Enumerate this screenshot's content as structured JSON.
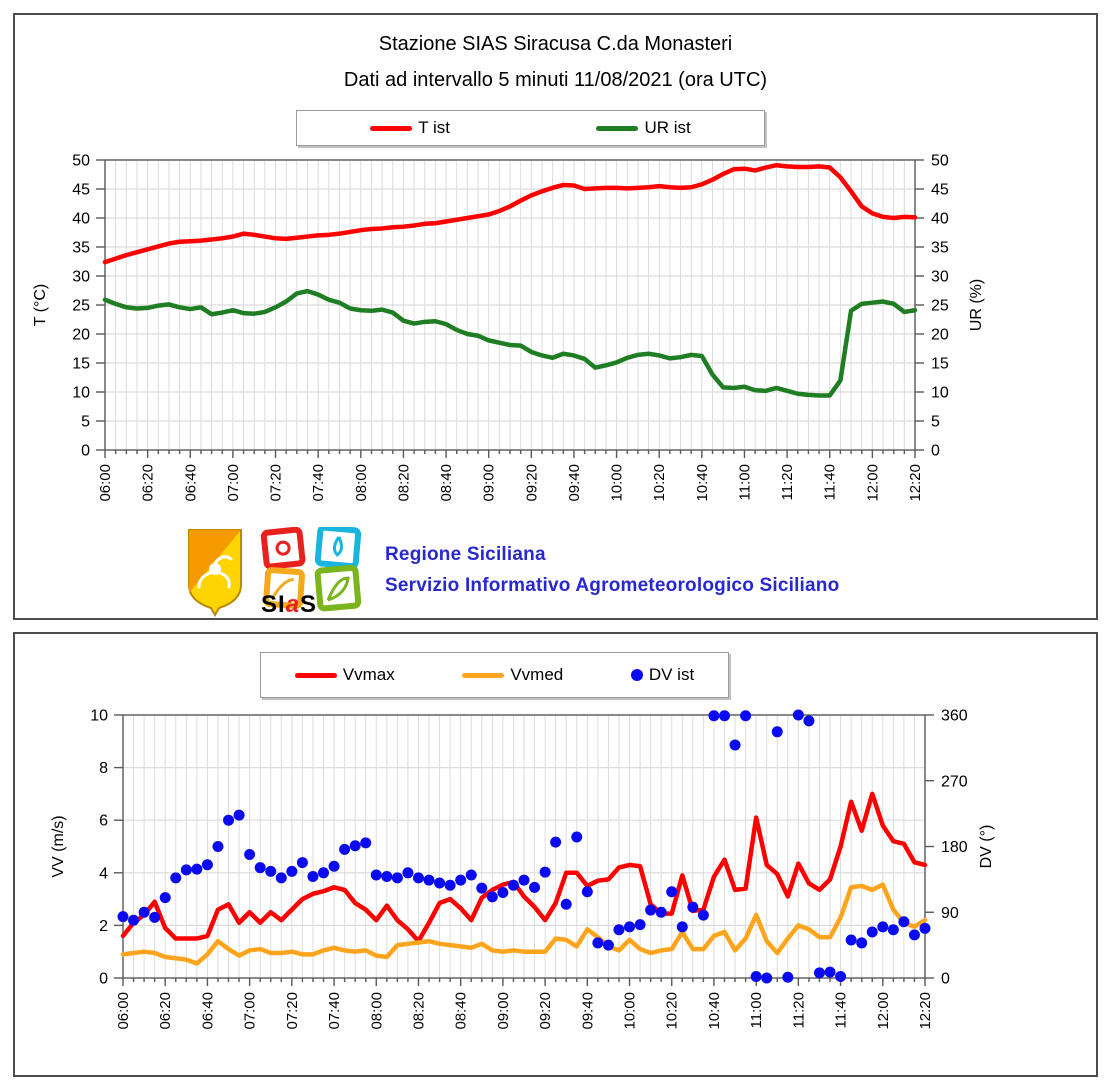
{
  "colors": {
    "t_ist": "#ff0000",
    "ur_ist": "#1f7d23",
    "vvmax": "#ff0000",
    "vvmed": "#ffa41c",
    "dv_ist": "#0a0af0",
    "brand_blue": "#2828d0",
    "sias_red": "#e8211d",
    "grid": "#dcdcdc",
    "axis": "#595959"
  },
  "branding": {
    "line1": "Regione Siciliana",
    "line2": "Servizio Informativo Agrometeorologico Siciliano",
    "sias_s1": "SI",
    "sias_a": "a",
    "sias_s2": "S"
  },
  "chart_data": [
    {
      "type": "line",
      "title": "Stazione SIAS Siracusa C.da Monasteri",
      "subtitle": "Dati ad intervallo 5 minuti 11/08/2021 (ora UTC)",
      "x_start": "06:00",
      "x_step_minutes": 5,
      "x_tick_labels": [
        "06:00",
        "06:20",
        "06:40",
        "07:00",
        "07:20",
        "07:40",
        "08:00",
        "08:20",
        "08:40",
        "09:00",
        "09:20",
        "09:40",
        "10:00",
        "10:20",
        "10:40",
        "11:00",
        "11:20",
        "11:40",
        "12:00",
        "12:20"
      ],
      "ylabel_left": "T (°C)",
      "ylabel_right": "UR (%)",
      "ylim_left": [
        0,
        50
      ],
      "ylim_right": [
        0,
        50
      ],
      "yticks_left": [
        0,
        5,
        10,
        15,
        20,
        25,
        30,
        35,
        40,
        45,
        50
      ],
      "yticks_right": [
        0,
        5,
        10,
        15,
        20,
        25,
        30,
        35,
        40,
        45,
        50
      ],
      "grid": true,
      "legend_position": "top",
      "series": [
        {
          "name": "T ist",
          "color": "#ff0000",
          "axis": "left",
          "style": "line",
          "values": [
            32.4,
            33.0,
            33.6,
            34.1,
            34.6,
            35.1,
            35.6,
            35.9,
            36.0,
            36.1,
            36.3,
            36.5,
            36.8,
            37.3,
            37.1,
            36.8,
            36.5,
            36.4,
            36.6,
            36.8,
            37.0,
            37.1,
            37.3,
            37.6,
            37.9,
            38.1,
            38.2,
            38.4,
            38.5,
            38.7,
            39.0,
            39.1,
            39.4,
            39.7,
            40.0,
            40.3,
            40.6,
            41.2,
            42.0,
            43.0,
            43.9,
            44.6,
            45.2,
            45.7,
            45.6,
            45.0,
            45.1,
            45.2,
            45.2,
            45.1,
            45.2,
            45.3,
            45.5,
            45.3,
            45.2,
            45.3,
            45.8,
            46.6,
            47.6,
            48.4,
            48.5,
            48.2,
            48.7,
            49.1,
            48.9,
            48.8,
            48.8,
            48.9,
            48.7,
            47.0,
            44.6,
            42.0,
            40.8,
            40.2,
            40.0,
            40.2,
            40.1
          ]
        },
        {
          "name": "UR ist",
          "color": "#1f7d23",
          "axis": "right",
          "style": "line",
          "values": [
            25.9,
            25.2,
            24.6,
            24.4,
            24.5,
            24.9,
            25.1,
            24.6,
            24.3,
            24.6,
            23.4,
            23.7,
            24.1,
            23.6,
            23.5,
            23.8,
            24.6,
            25.6,
            27.0,
            27.4,
            26.8,
            25.9,
            25.4,
            24.4,
            24.1,
            24.0,
            24.2,
            23.7,
            22.3,
            21.8,
            22.1,
            22.2,
            21.7,
            20.7,
            20.0,
            19.7,
            18.9,
            18.5,
            18.1,
            18.0,
            16.9,
            16.3,
            15.9,
            16.6,
            16.3,
            15.7,
            14.2,
            14.6,
            15.1,
            15.9,
            16.4,
            16.6,
            16.3,
            15.8,
            16.0,
            16.4,
            16.2,
            13.0,
            10.8,
            10.7,
            10.9,
            10.3,
            10.2,
            10.7,
            10.2,
            9.7,
            9.5,
            9.4,
            9.4,
            12.0,
            24.0,
            25.2,
            25.4,
            25.6,
            25.2,
            23.8,
            24.1
          ]
        }
      ]
    },
    {
      "type": "line+scatter",
      "title": "",
      "x_start": "06:00",
      "x_step_minutes": 5,
      "x_tick_labels": [
        "06:00",
        "06:20",
        "06:40",
        "07:00",
        "07:20",
        "07:40",
        "08:00",
        "08:20",
        "08:40",
        "09:00",
        "09:20",
        "09:40",
        "10:00",
        "10:20",
        "10:40",
        "11:00",
        "11:20",
        "11:40",
        "12:00",
        "12:20"
      ],
      "ylabel_left": "VV (m/s)",
      "ylabel_right": "DV (°)",
      "ylim_left": [
        0,
        10
      ],
      "ylim_right": [
        0,
        360
      ],
      "yticks_left": [
        0,
        2,
        4,
        6,
        8,
        10
      ],
      "yticks_right": [
        0,
        90,
        180,
        270,
        360
      ],
      "grid": true,
      "legend_position": "top",
      "series": [
        {
          "name": "Vvmax",
          "color": "#ff0000",
          "axis": "left",
          "style": "line",
          "values": [
            1.6,
            2.1,
            2.4,
            2.9,
            1.9,
            1.5,
            1.5,
            1.5,
            1.6,
            2.6,
            2.8,
            2.1,
            2.5,
            2.1,
            2.5,
            2.2,
            2.6,
            3.0,
            3.2,
            3.3,
            3.45,
            3.35,
            2.85,
            2.6,
            2.2,
            2.75,
            2.2,
            1.85,
            1.4,
            2.1,
            2.85,
            3.0,
            2.65,
            2.2,
            3.05,
            3.35,
            3.55,
            3.65,
            3.1,
            2.7,
            2.2,
            2.85,
            4.0,
            4.0,
            3.5,
            3.7,
            3.75,
            4.2,
            4.3,
            4.25,
            2.8,
            2.45,
            2.45,
            3.9,
            2.55,
            2.6,
            3.85,
            4.5,
            3.35,
            3.4,
            6.1,
            4.3,
            3.95,
            3.1,
            4.35,
            3.6,
            3.35,
            3.75,
            5.0,
            6.7,
            5.6,
            7.0,
            5.8,
            5.2,
            5.1,
            4.4,
            4.3
          ]
        },
        {
          "name": "Vvmed",
          "color": "#ffa41c",
          "axis": "left",
          "style": "line",
          "values": [
            0.9,
            0.95,
            1.0,
            0.95,
            0.8,
            0.75,
            0.7,
            0.55,
            0.9,
            1.4,
            1.1,
            0.85,
            1.05,
            1.1,
            0.95,
            0.95,
            1.0,
            0.9,
            0.9,
            1.05,
            1.15,
            1.05,
            1.0,
            1.05,
            0.85,
            0.8,
            1.25,
            1.3,
            1.35,
            1.4,
            1.3,
            1.25,
            1.2,
            1.15,
            1.3,
            1.05,
            1.0,
            1.05,
            1.0,
            1.0,
            1.0,
            1.5,
            1.45,
            1.2,
            1.85,
            1.55,
            1.2,
            1.05,
            1.45,
            1.1,
            0.95,
            1.05,
            1.1,
            1.75,
            1.1,
            1.1,
            1.6,
            1.75,
            1.05,
            1.5,
            2.4,
            1.4,
            0.95,
            1.5,
            2.0,
            1.85,
            1.55,
            1.55,
            2.3,
            3.45,
            3.5,
            3.35,
            3.55,
            2.6,
            2.1,
            1.95,
            2.2
          ]
        },
        {
          "name": "DV ist",
          "color": "#0a0af0",
          "axis": "right",
          "style": "scatter",
          "values": [
            84,
            79,
            90,
            83,
            110,
            137,
            148,
            149,
            155,
            180,
            216,
            223,
            169,
            151,
            146,
            137,
            146,
            158,
            139,
            144,
            153,
            176,
            181,
            185,
            141,
            139,
            137,
            144,
            137,
            134,
            130,
            127,
            134,
            141,
            123,
            111,
            117,
            127,
            134,
            124,
            145,
            186,
            101,
            193,
            118,
            48,
            45,
            66,
            70,
            73,
            93,
            90,
            118,
            70,
            97,
            86,
            359,
            359,
            319,
            359,
            2,
            0,
            337,
            1,
            360,
            352,
            7,
            8,
            2,
            52,
            48,
            63,
            70,
            66,
            77,
            59,
            68
          ]
        }
      ]
    }
  ]
}
